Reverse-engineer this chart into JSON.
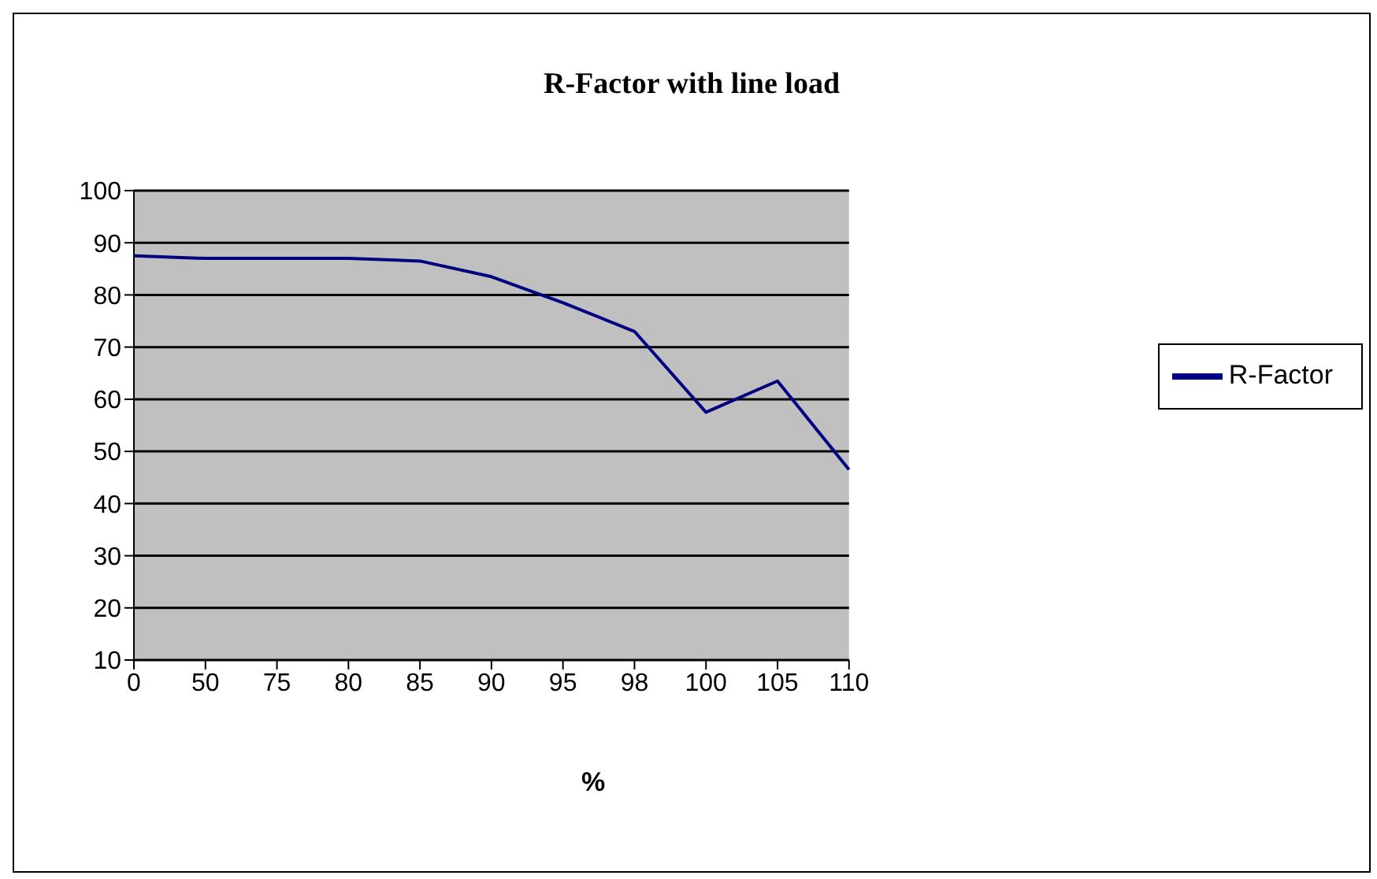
{
  "chart_data": {
    "type": "line",
    "title": "R-Factor with line load",
    "xlabel": "%",
    "categories": [
      "0",
      "50",
      "75",
      "80",
      "85",
      "90",
      "95",
      "98",
      "100",
      "105",
      "110"
    ],
    "series": [
      {
        "name": "R-Factor",
        "color": "#000080",
        "values": [
          87.5,
          87,
          87,
          87,
          86.5,
          83.5,
          78.5,
          73,
          57.5,
          63.5,
          46.5
        ]
      }
    ],
    "ylim": [
      10,
      100
    ],
    "yticks": [
      10,
      20,
      30,
      40,
      50,
      60,
      70,
      80,
      90,
      100
    ],
    "grid": "y",
    "legend": "right",
    "marker": "none",
    "line_style": "solid"
  }
}
